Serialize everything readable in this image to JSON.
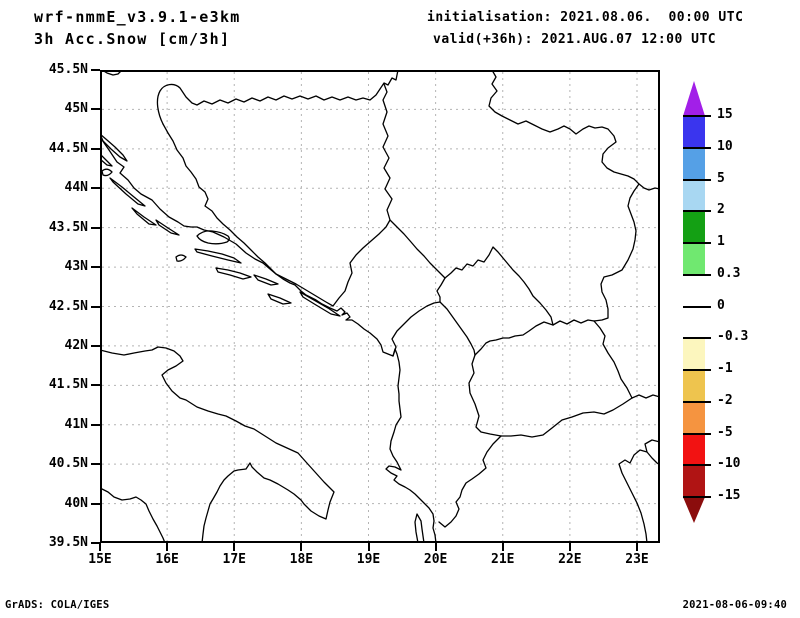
{
  "header": {
    "model": "wrf-nmmE_v3.9.1-e3km",
    "product": "3h Acc.Snow [cm/3h]",
    "initialisation": "initialisation: 2021.08.06.  00:00 UTC",
    "valid": "valid(+36h): 2021.AUG.07 12:00 UTC"
  },
  "footer": {
    "left": "GrADS: COLA/IGES",
    "right": "2021-08-06-09:40"
  },
  "chart_data": {
    "type": "heatmap",
    "title": "3h Acc.Snow [cm/3h]",
    "model": "wrf-nmmE_v3.9.1-e3km",
    "init_time": "2021.08.06. 00:00 UTC",
    "valid_time": "2021.AUG.07 12:00 UTC",
    "forecast_hour": "+36h",
    "region": "Adriatic / Western Balkans (outline map of Italy, Croatia, Bosnia, Serbia, Montenegro, Kosovo, Albania, North Macedonia, Greece, Bulgaria)",
    "lon_ticks": [
      "15E",
      "16E",
      "17E",
      "18E",
      "19E",
      "20E",
      "21E",
      "22E",
      "23E"
    ],
    "lat_ticks": [
      "45.5N",
      "45N",
      "44.5N",
      "44N",
      "43.5N",
      "43N",
      "42.5N",
      "42N",
      "41.5N",
      "41N",
      "40.5N",
      "40N",
      "39.5N"
    ],
    "lon_range_deg": [
      15.0,
      23.34
    ],
    "lat_range_deg": [
      39.5,
      45.5
    ],
    "grid": "on (dotted gray; verticals every 1 deg lon, horizontals every 0.5 deg lat)",
    "field_values": "0 cm/3h over the entire domain (whole map in the white -0.3..0.3 band; no shaded areas)",
    "colorbar": {
      "units": "cm/3h",
      "labels": [
        "15",
        "10",
        "5",
        "2",
        "1",
        "0.3",
        "0",
        "-0.3",
        "-1",
        "-2",
        "-5",
        "-10",
        "-15"
      ],
      "segments_top_to_bottom": [
        {
          "range": "> 15",
          "color": "#A21FE8",
          "shape": "triangle-up"
        },
        {
          "range": "10 to 15",
          "color": "#3A35EE"
        },
        {
          "range": "5 to 10",
          "color": "#55A0E6"
        },
        {
          "range": "2 to 5",
          "color": "#A8D7F2"
        },
        {
          "range": "1 to 2",
          "color": "#14A014"
        },
        {
          "range": "0.3 to 1",
          "color": "#70E870"
        },
        {
          "range": "0 to 0.3",
          "color": "#FFFFFF"
        },
        {
          "range": "-0.3 to 0",
          "color": "#FFFFFF"
        },
        {
          "range": "-1 to -0.3",
          "color": "#FCF6BE"
        },
        {
          "range": "-2 to -1",
          "color": "#EEC44E"
        },
        {
          "range": "-5 to -2",
          "color": "#F59440"
        },
        {
          "range": "-10 to -5",
          "color": "#F21212"
        },
        {
          "range": "-15 to -10",
          "color": "#B01414"
        },
        {
          "range": "< -15",
          "color": "#8B0D0D",
          "shape": "triangle-down"
        }
      ]
    }
  }
}
